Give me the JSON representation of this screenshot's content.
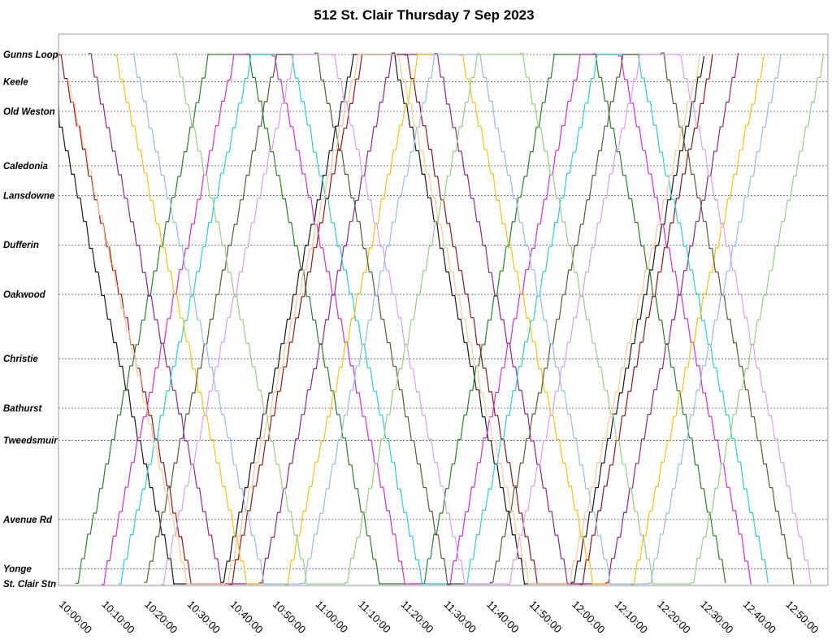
{
  "chart_data": {
    "type": "line",
    "title": "512 St. Clair Thursday 7 Sep 2023",
    "xlabel": "",
    "ylabel": "",
    "x_range": [
      "10:00:00",
      "13:00:00"
    ],
    "x_ticks": [
      "10:00:00",
      "10:10:00",
      "10:20:00",
      "10:30:00",
      "10:40:00",
      "10:50:00",
      "11:00:00",
      "11:10:00",
      "11:20:00",
      "11:30:00",
      "11:40:00",
      "11:50:00",
      "12:00:00",
      "12:10:00",
      "12:20:00",
      "12:30:00",
      "12:40:00",
      "12:50:00"
    ],
    "y_stops": [
      {
        "name": "Gunns Loop",
        "pos": 0.0
      },
      {
        "name": "Keele",
        "pos": 0.055
      },
      {
        "name": "Old Weston",
        "pos": 0.115
      },
      {
        "name": "Caledonia",
        "pos": 0.225
      },
      {
        "name": "Lansdowne",
        "pos": 0.285
      },
      {
        "name": "Dufferin",
        "pos": 0.385
      },
      {
        "name": "Oakwood",
        "pos": 0.485
      },
      {
        "name": "Christie",
        "pos": 0.615
      },
      {
        "name": "Bathurst",
        "pos": 0.715
      },
      {
        "name": "Tweedsmuir",
        "pos": 0.78
      },
      {
        "name": "Avenue Rd",
        "pos": 0.94
      },
      {
        "name": "Yonge",
        "pos": 1.04
      },
      {
        "name": "St. Clair Stn",
        "pos": 1.07
      }
    ],
    "y_axis_note": "pos = distance along route from Gunns Loop (0) to St. Clair Stn",
    "grid": true,
    "legend": "none",
    "series": [
      {
        "color": "#1a1a1a",
        "trips": [
          [
            "09:56",
            0
          ],
          [
            "10:27",
            1.07
          ],
          [
            "10:38",
            1.07
          ],
          [
            "11:09",
            0
          ],
          [
            "11:18",
            0
          ],
          [
            "11:49",
            1.07
          ],
          [
            "12:00",
            1.07
          ],
          [
            "12:31",
            0
          ]
        ]
      },
      {
        "color": "#2f7d2f",
        "trips": [
          [
            "10:04",
            1.07
          ],
          [
            "10:35",
            0
          ],
          [
            "10:44",
            0
          ],
          [
            "11:15",
            1.07
          ],
          [
            "11:25",
            1.07
          ],
          [
            "11:56",
            0
          ],
          [
            "12:05",
            0
          ],
          [
            "12:36",
            1.07
          ]
        ]
      },
      {
        "color": "#8b1a1a",
        "trips": [
          [
            "10:00",
            0
          ],
          [
            "10:31",
            1.07
          ],
          [
            "10:40",
            1.07
          ],
          [
            "11:11",
            0
          ],
          [
            "11:21",
            0
          ],
          [
            "11:52",
            1.07
          ],
          [
            "12:02",
            1.07
          ],
          [
            "12:33",
            0
          ]
        ]
      },
      {
        "color": "#cc33cc",
        "trips": [
          [
            "10:10",
            1.07
          ],
          [
            "10:41",
            0
          ],
          [
            "10:50",
            0
          ],
          [
            "11:21",
            1.07
          ],
          [
            "11:31",
            1.07
          ],
          [
            "12:02",
            0
          ],
          [
            "12:11",
            0
          ],
          [
            "12:42",
            1.07
          ]
        ]
      },
      {
        "color": "#8a2b8a",
        "trips": [
          [
            "10:07",
            0
          ],
          [
            "10:38",
            1.07
          ],
          [
            "10:47",
            1.07
          ],
          [
            "11:18",
            0
          ],
          [
            "11:28",
            0
          ],
          [
            "11:59",
            1.07
          ],
          [
            "12:08",
            1.07
          ],
          [
            "12:39",
            0
          ]
        ]
      },
      {
        "color": "#33cccc",
        "trips": [
          [
            "10:14",
            1.07
          ],
          [
            "10:45",
            0
          ],
          [
            "10:54",
            0
          ],
          [
            "11:25",
            1.07
          ],
          [
            "11:35",
            1.07
          ],
          [
            "12:06",
            0
          ],
          [
            "12:15",
            0
          ],
          [
            "12:46",
            1.07
          ]
        ]
      },
      {
        "color": "#f0c020",
        "trips": [
          [
            "10:13",
            0
          ],
          [
            "10:44",
            1.07
          ],
          [
            "10:53",
            1.07
          ],
          [
            "11:24",
            0
          ],
          [
            "11:34",
            0
          ],
          [
            "12:05",
            1.07
          ],
          [
            "12:14",
            1.07
          ],
          [
            "12:45",
            0
          ]
        ]
      },
      {
        "color": "#5a5a3a",
        "trips": [
          [
            "10:20",
            1.07
          ],
          [
            "10:51",
            0
          ],
          [
            "11:00",
            0
          ],
          [
            "11:31",
            1.07
          ],
          [
            "11:41",
            1.07
          ],
          [
            "12:12",
            0
          ],
          [
            "12:21",
            0
          ],
          [
            "12:52",
            1.07
          ]
        ]
      },
      {
        "color": "#99bbee",
        "trips": [
          [
            "10:17",
            0
          ],
          [
            "10:48",
            1.07
          ],
          [
            "10:57",
            1.07
          ],
          [
            "11:28",
            0
          ],
          [
            "11:38",
            0
          ],
          [
            "12:09",
            1.07
          ],
          [
            "12:18",
            1.07
          ],
          [
            "12:49",
            0
          ]
        ]
      },
      {
        "color": "#d7a0e8",
        "trips": [
          [
            "10:24",
            1.07
          ],
          [
            "10:55",
            0
          ],
          [
            "11:04",
            0
          ],
          [
            "11:35",
            1.07
          ],
          [
            "11:45",
            1.07
          ],
          [
            "12:16",
            0
          ],
          [
            "12:25",
            0
          ],
          [
            "12:56",
            1.07
          ]
        ]
      },
      {
        "color": "#f5c8a0",
        "trips": [
          [
            "10:02",
            0.05
          ],
          [
            "10:30",
            1.07
          ],
          [
            "10:39",
            1.07
          ],
          [
            "11:10",
            0
          ],
          [
            "11:19",
            0
          ],
          [
            "11:50",
            1.07
          ],
          [
            "11:59",
            1.07
          ],
          [
            "12:30",
            0
          ]
        ]
      },
      {
        "color": "#9acd88",
        "trips": [
          [
            "10:27",
            0
          ],
          [
            "10:58",
            1.07
          ],
          [
            "11:07",
            1.07
          ],
          [
            "11:38",
            0
          ],
          [
            "11:48",
            0
          ],
          [
            "12:19",
            1.07
          ],
          [
            "12:28",
            1.07
          ],
          [
            "12:59",
            0
          ]
        ]
      }
    ]
  }
}
